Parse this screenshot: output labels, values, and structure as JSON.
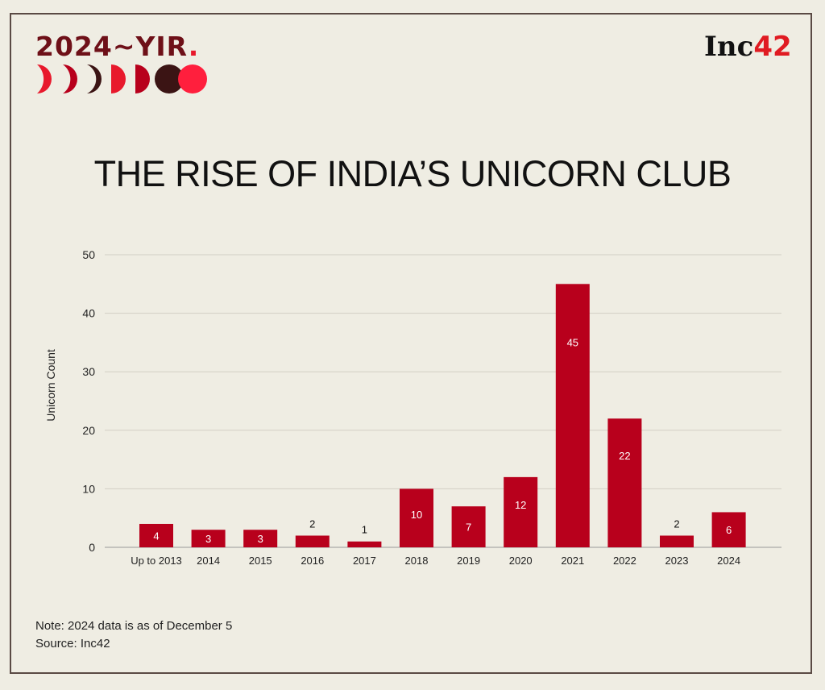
{
  "branding": {
    "yir_label": "2024~YIR",
    "yir_dot_color": "#e8192c",
    "logo_text": "Inc",
    "logo_number": "42"
  },
  "notes": [
    "Note: 2024 data is as of December 5",
    "Source: Inc42"
  ],
  "colors": {
    "bar": "#b8001c",
    "background": "#efede3"
  },
  "chart_data": {
    "type": "bar",
    "title": "THE RISE OF INDIA’S UNICORN CLUB",
    "xlabel": "",
    "ylabel": "Unicorn Count",
    "ylim": [
      0,
      50
    ],
    "yticks": [
      0,
      10,
      20,
      30,
      40,
      50
    ],
    "grid": true,
    "categories": [
      "Up to 2013",
      "2014",
      "2015",
      "2016",
      "2017",
      "2018",
      "2019",
      "2020",
      "2021",
      "2022",
      "2023",
      "2024"
    ],
    "values": [
      4,
      3,
      3,
      2,
      1,
      10,
      7,
      12,
      45,
      22,
      2,
      6
    ]
  }
}
